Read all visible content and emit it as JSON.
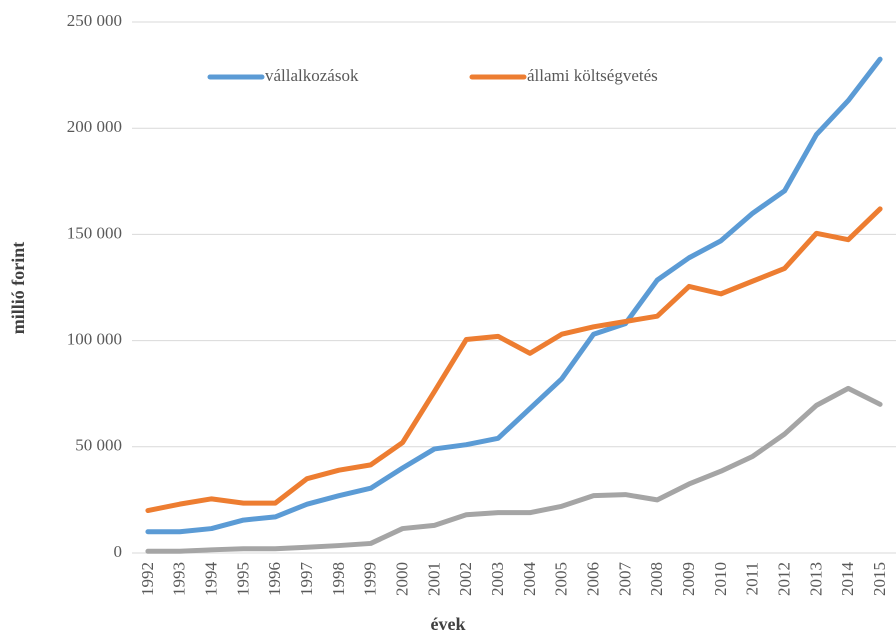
{
  "chart_data": {
    "type": "line",
    "x_label": "évek",
    "y_label": "millió forint",
    "categories": [
      "1992",
      "1993",
      "1994",
      "1995",
      "1996",
      "1997",
      "1998",
      "1999",
      "2000",
      "2001",
      "2002",
      "2003",
      "2004",
      "2005",
      "2006",
      "2007",
      "2008",
      "2009",
      "2010",
      "2011",
      "2012",
      "2013",
      "2014",
      "2015"
    ],
    "series": [
      {
        "name": "vállalkozások",
        "color": "#5b9bd5",
        "values": [
          10000,
          10000,
          11500,
          15500,
          17000,
          23000,
          27000,
          30500,
          40000,
          49000,
          51000,
          54000,
          68000,
          82000,
          103000,
          108000,
          128500,
          139000,
          147000,
          160000,
          170500,
          197000,
          213000,
          232500
        ]
      },
      {
        "name": "állami költségvetés",
        "color": "#ed7d31",
        "values": [
          20000,
          23000,
          25500,
          23500,
          23500,
          35000,
          39000,
          41500,
          52000,
          76000,
          100500,
          102000,
          94000,
          103000,
          106500,
          109000,
          111500,
          125500,
          122000,
          128000,
          134000,
          150500,
          147500,
          162000
        ]
      },
      {
        "color": "#a5a5a5",
        "values": [
          800,
          800,
          1500,
          2000,
          2000,
          2700,
          3500,
          4500,
          11500,
          13000,
          18000,
          19000,
          19000,
          22000,
          27000,
          27500,
          25000,
          32500,
          38500,
          45500,
          56000,
          69500,
          77500,
          70000
        ]
      }
    ],
    "ylim": [
      0,
      250000
    ],
    "yticks": [
      0,
      {
        "value": 50000,
        "label": "50 000"
      },
      {
        "value": 100000,
        "label": "100 000"
      },
      {
        "value": 150000,
        "label": "150 000"
      },
      {
        "value": 200000,
        "label": "200 000"
      },
      {
        "value": 250000,
        "label": "250 000"
      }
    ],
    "grid": true,
    "legend": "top"
  }
}
